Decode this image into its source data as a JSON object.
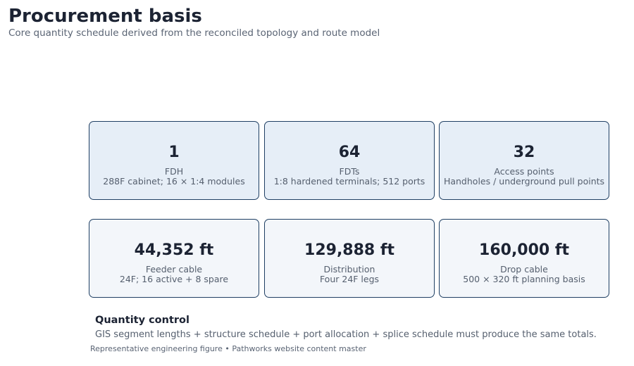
{
  "header": {
    "title": "Procurement basis",
    "subtitle": "Core quantity schedule derived from the reconciled topology and route model"
  },
  "cards_top": [
    {
      "value": "1",
      "label": "FDH",
      "detail": "288F cabinet; 16 × 1:4 modules"
    },
    {
      "value": "64",
      "label": "FDTs",
      "detail": "1:8 hardened terminals; 512 ports"
    },
    {
      "value": "32",
      "label": "Access points",
      "detail": "Handholes / underground pull points"
    }
  ],
  "cards_bottom": [
    {
      "value": "44,352 ft",
      "label": "Feeder cable",
      "detail": "24F; 16 active + 8 spare"
    },
    {
      "value": "129,888 ft",
      "label": "Distribution",
      "detail": "Four 24F legs"
    },
    {
      "value": "160,000 ft",
      "label": "Drop cable",
      "detail": "500 × 320 ft planning basis"
    }
  ],
  "quantity_control": {
    "heading": "Quantity control",
    "text": "GIS segment lengths + structure schedule + port allocation + splice schedule must produce the same totals."
  },
  "footer": "Representative engineering figure • Pathworks website content master",
  "colors": {
    "card_border": "#1f3f63",
    "card_top_fill": "#e6eef7",
    "card_bottom_fill": "#f3f6fa",
    "heading_text": "#1c2333",
    "muted_text": "#555f6e"
  }
}
